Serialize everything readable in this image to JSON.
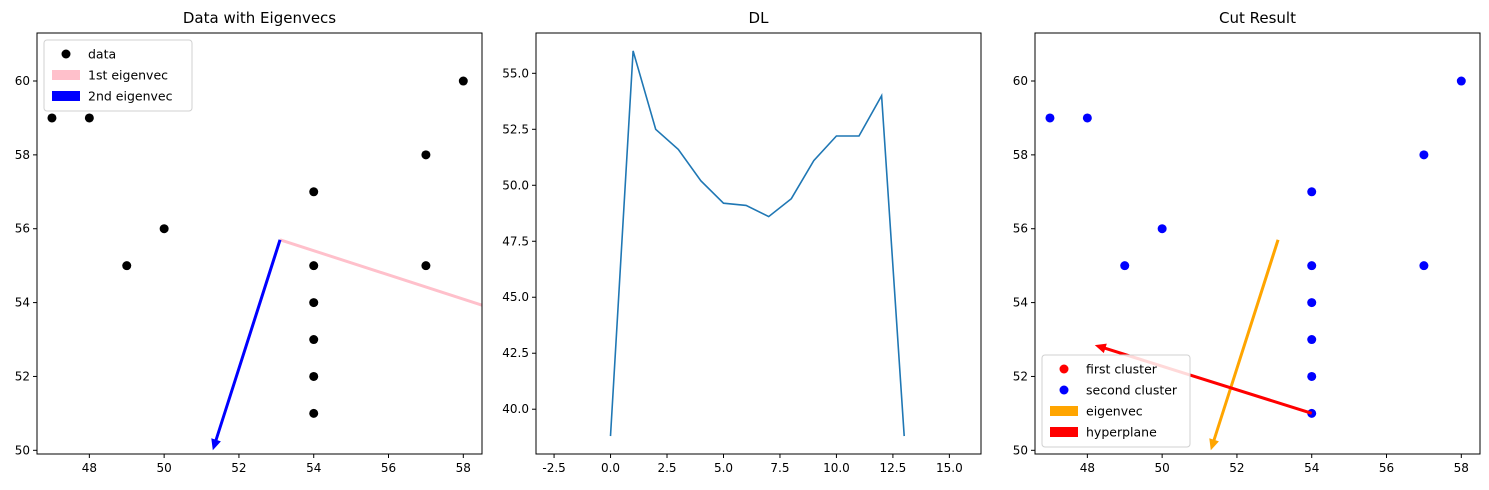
{
  "chart_data": [
    {
      "type": "scatter",
      "title": "Data with Eigenvecs",
      "xlim": [
        46.6,
        58.5
      ],
      "ylim": [
        49.9,
        61.3
      ],
      "xticks": [
        48,
        50,
        52,
        54,
        56,
        58
      ],
      "yticks": [
        50,
        52,
        54,
        56,
        58,
        60
      ],
      "legend_position": "upper-left",
      "series": [
        {
          "name": "data",
          "kind": "points",
          "color": "#000000",
          "x": [
            47,
            48,
            49,
            50,
            54,
            54,
            54,
            54,
            54,
            54,
            57,
            57,
            58
          ],
          "y": [
            59,
            59,
            55,
            56,
            57,
            55,
            54,
            53,
            52,
            51,
            58,
            55,
            60
          ]
        },
        {
          "name": "1st eigenvec",
          "kind": "arrow",
          "color": "#ffc0cb",
          "from": [
            53.1,
            55.7
          ],
          "to": [
            58.9,
            53.8
          ]
        },
        {
          "name": "2nd eigenvec",
          "kind": "arrow",
          "color": "#0000ff",
          "from": [
            53.1,
            55.7
          ],
          "to": [
            51.3,
            50.0
          ]
        }
      ]
    },
    {
      "type": "line",
      "title": "DL",
      "xlim": [
        -3.3,
        16.4
      ],
      "ylim": [
        38.0,
        56.8
      ],
      "xticks": [
        -2.5,
        0.0,
        2.5,
        5.0,
        7.5,
        10.0,
        12.5,
        15.0
      ],
      "yticks": [
        40.0,
        42.5,
        45.0,
        47.5,
        50.0,
        52.5,
        55.0
      ],
      "series": [
        {
          "name": "",
          "color": "#1f77b4",
          "x": [
            0,
            1,
            2,
            3,
            4,
            5,
            6,
            7,
            8,
            9,
            10,
            11,
            12,
            13
          ],
          "y": [
            38.8,
            56.0,
            52.5,
            51.6,
            50.2,
            49.2,
            49.1,
            48.6,
            49.4,
            51.1,
            52.2,
            52.2,
            54.0,
            38.8
          ]
        }
      ]
    },
    {
      "type": "scatter",
      "title": "Cut Result",
      "xlim": [
        46.6,
        58.5
      ],
      "ylim": [
        49.9,
        61.3
      ],
      "xticks": [
        48,
        50,
        52,
        54,
        56,
        58
      ],
      "yticks": [
        50,
        52,
        54,
        56,
        58,
        60
      ],
      "legend_position": "lower-left",
      "series": [
        {
          "name": "first cluster",
          "kind": "points",
          "color": "#ff0000",
          "x": [],
          "y": []
        },
        {
          "name": "second cluster",
          "kind": "points",
          "color": "#0000ff",
          "x": [
            47,
            48,
            49,
            50,
            54,
            54,
            54,
            54,
            54,
            54,
            57,
            57,
            58
          ],
          "y": [
            59,
            59,
            55,
            56,
            57,
            55,
            54,
            53,
            52,
            51,
            58,
            55,
            60
          ]
        },
        {
          "name": "eigenvec",
          "kind": "arrow",
          "color": "#ffa500",
          "from": [
            53.1,
            55.7
          ],
          "to": [
            51.3,
            50.0
          ]
        },
        {
          "name": "hyperplane",
          "kind": "arrow",
          "color": "#ff0000",
          "from": [
            54.0,
            51.0
          ],
          "to": [
            48.2,
            52.85
          ]
        }
      ]
    }
  ]
}
